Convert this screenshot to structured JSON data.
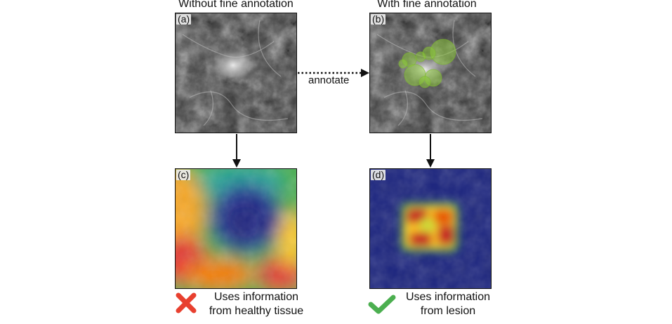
{
  "headings": {
    "left": "Without fine annotation",
    "right": "With fine annotation"
  },
  "panels": {
    "a": {
      "label": "(a)"
    },
    "b": {
      "label": "(b)"
    },
    "c": {
      "label": "(c)"
    },
    "d": {
      "label": "(d)"
    }
  },
  "arrow_label": "annotate",
  "verdicts": {
    "left": {
      "line1": "Uses information",
      "line2": "from healthy tissue",
      "icon": "cross-icon",
      "color": "#e8402f"
    },
    "right": {
      "line1": "Uses information",
      "line2": "from lesion",
      "icon": "check-icon",
      "color": "#4caf50"
    }
  },
  "colors": {
    "annotation_green": "#8fcf3a",
    "heatmap_low": "#1a237e",
    "heatmap_high": "#c62828"
  }
}
